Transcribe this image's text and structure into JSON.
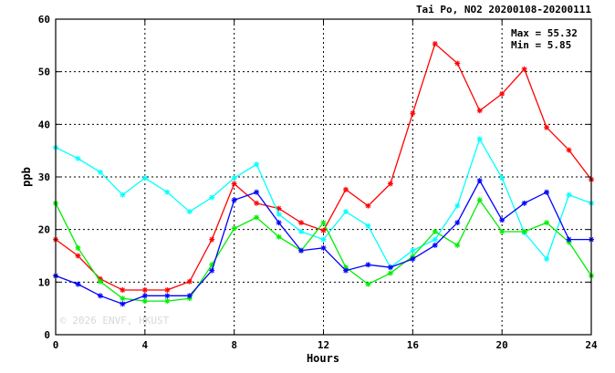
{
  "chart_data": {
    "type": "line",
    "title": "Tai Po, NO2 20200108-20200111",
    "xlabel": "Hours",
    "ylabel": "ppb",
    "xlim": [
      0,
      24
    ],
    "ylim": [
      0,
      60
    ],
    "x_ticks": [
      "0",
      "4",
      "8",
      "12",
      "16",
      "20",
      "24"
    ],
    "y_ticks": [
      "0",
      "10",
      "20",
      "30",
      "40",
      "50",
      "60"
    ],
    "grid": true,
    "stats": {
      "max_label": "Max = 55.32",
      "min_label": "Min =  5.85"
    },
    "watermark": "© 2026  ENVF, HKUST",
    "x": [
      0,
      1,
      2,
      3,
      4,
      5,
      6,
      7,
      8,
      9,
      10,
      11,
      12,
      13,
      14,
      15,
      16,
      17,
      18,
      19,
      20,
      21,
      22,
      23,
      24
    ],
    "series": [
      {
        "color": "#ff0000",
        "values": [
          18.1,
          15.0,
          10.6,
          8.5,
          8.5,
          8.5,
          10.1,
          18.1,
          28.7,
          25.0,
          24.0,
          21.3,
          19.8,
          27.6,
          24.5,
          28.7,
          42.1,
          55.32,
          51.6,
          42.6,
          45.8,
          50.5,
          39.4,
          35.1,
          29.5
        ]
      },
      {
        "color": "#00ffff",
        "values": [
          35.6,
          33.5,
          30.9,
          26.6,
          29.8,
          27.1,
          23.4,
          26.1,
          29.8,
          32.4,
          22.9,
          19.6,
          18.1,
          23.4,
          20.7,
          12.8,
          16.0,
          18.1,
          24.5,
          37.2,
          29.8,
          19.4,
          14.4,
          26.6,
          25.0
        ]
      },
      {
        "color": "#00ee00",
        "values": [
          25.0,
          16.5,
          10.1,
          6.9,
          6.4,
          6.4,
          6.9,
          13.3,
          20.2,
          22.3,
          18.6,
          16.0,
          21.3,
          12.8,
          9.6,
          11.7,
          14.9,
          19.6,
          17.0,
          25.6,
          19.6,
          19.6,
          21.3,
          17.6,
          11.2
        ]
      },
      {
        "color": "#0000ff",
        "values": [
          11.2,
          9.6,
          7.4,
          5.85,
          7.4,
          7.4,
          7.4,
          12.2,
          25.6,
          27.1,
          21.3,
          16.0,
          16.5,
          12.2,
          13.3,
          12.8,
          14.4,
          17.0,
          21.3,
          29.3,
          21.8,
          25.0,
          27.1,
          18.1,
          18.1
        ]
      }
    ]
  }
}
